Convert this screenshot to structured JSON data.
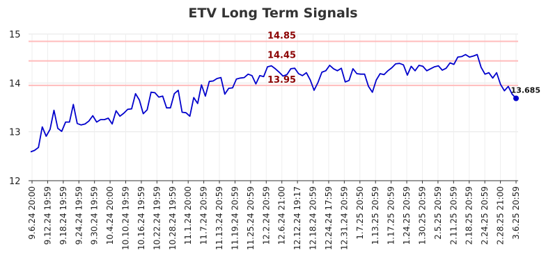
{
  "chart_data": {
    "type": "line",
    "title": "ETV Long Term Signals",
    "xlabel": "",
    "ylabel": "",
    "ylim": [
      12,
      15
    ],
    "yticks": [
      "12",
      "13",
      "14",
      "15"
    ],
    "grid": true,
    "line_color": "#0000cc",
    "reference_lines": [
      {
        "value": 14.85,
        "label": "14.85",
        "color": "#ffbbbb",
        "label_color": "#8b0000"
      },
      {
        "value": 14.45,
        "label": "14.45",
        "color": "#ffbbbb",
        "label_color": "#8b0000"
      },
      {
        "value": 13.95,
        "label": "13.95",
        "color": "#ffbbbb",
        "label_color": "#8b0000"
      }
    ],
    "x_tick_labels": [
      "9.6.24 20:00",
      "9.12.24 19:59",
      "9.18.24 19:59",
      "9.24.24 19:59",
      "9.30.24 19:59",
      "10.4.24 20:00",
      "10.10.24 19:59",
      "10.16.24 19:59",
      "10.22.24 19:59",
      "10.28.24 19:59",
      "11.1.24 20:00",
      "11.7.24 20:59",
      "11.13.24 20:59",
      "11.19.24 20:59",
      "11.25.24 20:59",
      "12.2.24 20:59",
      "12.6.24 21:00",
      "12.12.24 19:17",
      "12.18.24 20:59",
      "12.24.24 17:59",
      "12.31.24 20:59",
      "1.7.25 20:50",
      "1.13.25 20:59",
      "1.17.25 20:59",
      "1.24.25 20:59",
      "1.30.25 20:59",
      "2.5.25 20:59",
      "2.11.25 20:59",
      "2.18.25 20:59",
      "2.24.25 20:59",
      "2.28.25 21:00",
      "3.6.25 20:59"
    ],
    "last_value_label": "13.685",
    "values": [
      12.59,
      12.62,
      12.68,
      13.1,
      12.91,
      13.05,
      13.44,
      13.07,
      13.01,
      13.2,
      13.2,
      13.56,
      13.17,
      13.14,
      13.16,
      13.22,
      13.33,
      13.2,
      13.25,
      13.25,
      13.28,
      13.16,
      13.43,
      13.32,
      13.38,
      13.46,
      13.47,
      13.78,
      13.65,
      13.37,
      13.45,
      13.81,
      13.8,
      13.71,
      13.73,
      13.49,
      13.49,
      13.78,
      13.85,
      13.4,
      13.39,
      13.32,
      13.7,
      13.58,
      13.96,
      13.73,
      14.03,
      14.04,
      14.09,
      14.11,
      13.77,
      13.89,
      13.9,
      14.08,
      14.1,
      14.11,
      14.18,
      14.15,
      13.98,
      14.15,
      14.13,
      14.33,
      14.35,
      14.29,
      14.22,
      14.14,
      14.17,
      14.29,
      14.3,
      14.19,
      14.15,
      14.21,
      14.06,
      13.85,
      14.01,
      14.22,
      14.25,
      14.36,
      14.29,
      14.25,
      14.3,
      14.02,
      14.05,
      14.29,
      14.19,
      14.18,
      14.18,
      13.93,
      13.81,
      14.06,
      14.19,
      14.17,
      14.25,
      14.31,
      14.39,
      14.4,
      14.37,
      14.16,
      14.34,
      14.25,
      14.36,
      14.34,
      14.25,
      14.29,
      14.33,
      14.35,
      14.26,
      14.3,
      14.41,
      14.38,
      14.53,
      14.54,
      14.58,
      14.53,
      14.55,
      14.58,
      14.32,
      14.18,
      14.21,
      14.1,
      14.21,
      13.97,
      13.84,
      13.93,
      13.77,
      13.685
    ]
  }
}
